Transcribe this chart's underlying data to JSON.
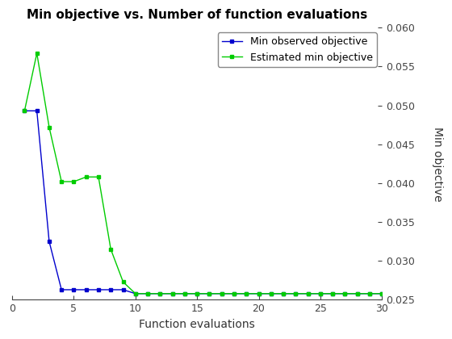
{
  "title": "Min objective vs. Number of function evaluations",
  "xlabel": "Function evaluations",
  "ylabel": "Min objective",
  "blue_x": [
    1,
    2,
    3,
    4,
    5,
    6,
    7,
    8,
    9,
    10,
    11,
    12,
    13,
    14,
    15,
    16,
    17,
    18,
    19,
    20,
    21,
    22,
    23,
    24,
    25,
    26,
    27,
    28,
    29,
    30
  ],
  "blue_y": [
    0.0493,
    0.0493,
    0.0325,
    0.0263,
    0.0263,
    0.0263,
    0.0263,
    0.0263,
    0.0263,
    0.0258,
    0.0258,
    0.0258,
    0.0258,
    0.0258,
    0.0258,
    0.0258,
    0.0258,
    0.0258,
    0.0258,
    0.0258,
    0.0258,
    0.0258,
    0.0258,
    0.0258,
    0.0258,
    0.0258,
    0.0258,
    0.0258,
    0.0258,
    0.0258
  ],
  "green_x": [
    1,
    2,
    3,
    4,
    5,
    6,
    7,
    8,
    9,
    10,
    11,
    12,
    13,
    14,
    15,
    16,
    17,
    18,
    19,
    20,
    21,
    22,
    23,
    24,
    25,
    26,
    27,
    28,
    29,
    30
  ],
  "green_y": [
    0.0493,
    0.0567,
    0.0472,
    0.0402,
    0.0402,
    0.0408,
    0.0408,
    0.0315,
    0.0273,
    0.0258,
    0.0258,
    0.0258,
    0.0258,
    0.0258,
    0.0258,
    0.0258,
    0.0258,
    0.0258,
    0.0258,
    0.0258,
    0.0258,
    0.0258,
    0.0258,
    0.0258,
    0.0258,
    0.0258,
    0.0258,
    0.0258,
    0.0258,
    0.0258
  ],
  "blue_color": "#0000cd",
  "green_color": "#00cc00",
  "ylim": [
    0.025,
    0.06
  ],
  "xlim": [
    0,
    30
  ],
  "yticks": [
    0.025,
    0.03,
    0.035,
    0.04,
    0.045,
    0.05,
    0.055,
    0.06
  ],
  "xticks": [
    0,
    5,
    10,
    15,
    20,
    25,
    30
  ],
  "legend_labels": [
    "Min observed objective",
    "Estimated min objective"
  ],
  "background_color": "#ffffff",
  "title_fontsize": 11,
  "axis_fontsize": 10,
  "tick_fontsize": 9,
  "legend_fontsize": 9
}
